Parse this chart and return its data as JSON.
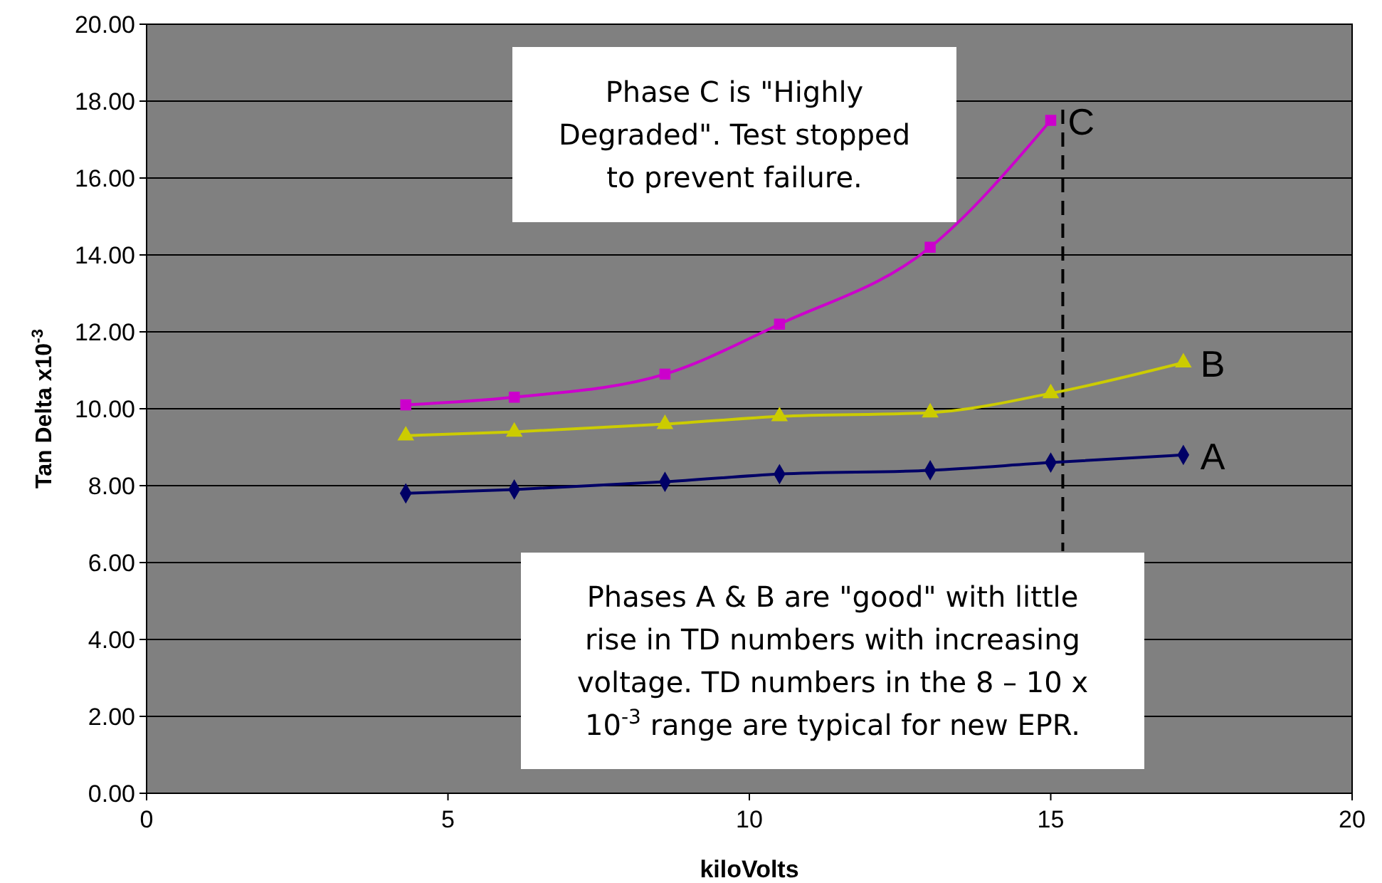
{
  "chart_data": {
    "type": "line",
    "xlabel": "kiloVolts",
    "ylabel": "Tan Delta x10$^{-3}$",
    "xlim": [
      0,
      20
    ],
    "xticks": [
      0,
      5,
      10,
      15,
      20
    ],
    "ylim": [
      0,
      20
    ],
    "yticks": [
      {
        "value": 0,
        "label": "0.00"
      },
      {
        "value": 2,
        "label": "2.00"
      },
      {
        "value": 4,
        "label": "4.00"
      },
      {
        "value": 6,
        "label": "6.00"
      },
      {
        "value": 8,
        "label": "8.00"
      },
      {
        "value": 10,
        "label": "10.00"
      },
      {
        "value": 12,
        "label": "12.00"
      },
      {
        "value": 14,
        "label": "14.00"
      },
      {
        "value": 16,
        "label": "16.00"
      },
      {
        "value": 18,
        "label": "18.00"
      },
      {
        "value": 20,
        "label": "20.00"
      }
    ],
    "grid": "y",
    "series": [
      {
        "name": "A",
        "color": "#000066",
        "marker": "diamond",
        "x": [
          4.3,
          6.1,
          8.6,
          10.5,
          13,
          15,
          17.2
        ],
        "values": [
          7.8,
          7.9,
          8.1,
          8.3,
          8.4,
          8.6,
          8.8
        ]
      },
      {
        "name": "B",
        "color": "#cccc00",
        "marker": "triangle",
        "x": [
          4.3,
          6.1,
          8.6,
          10.5,
          13,
          15,
          17.2
        ],
        "values": [
          9.3,
          9.4,
          9.6,
          9.8,
          9.9,
          10.4,
          11.2
        ]
      },
      {
        "name": "C",
        "color": "#cc00cc",
        "marker": "square",
        "x": [
          4.3,
          6.1,
          8.6,
          10.5,
          13,
          15
        ],
        "values": [
          10.1,
          10.3,
          10.9,
          12.2,
          14.2,
          17.5
        ]
      }
    ],
    "ref_lines": [
      {
        "axis": "x",
        "value": 15.2,
        "color": "#000000",
        "line_style": "dashed"
      }
    ],
    "annotations": [
      "Phase C is \"Highly Degraded\". Test stopped to prevent failure.",
      "Phases A & B are \"good\" with little rise in TD numbers with increasing voltage.  TD numbers in the 8 – 10 x 10$^{-3}$ range are typical for new EPR."
    ]
  }
}
